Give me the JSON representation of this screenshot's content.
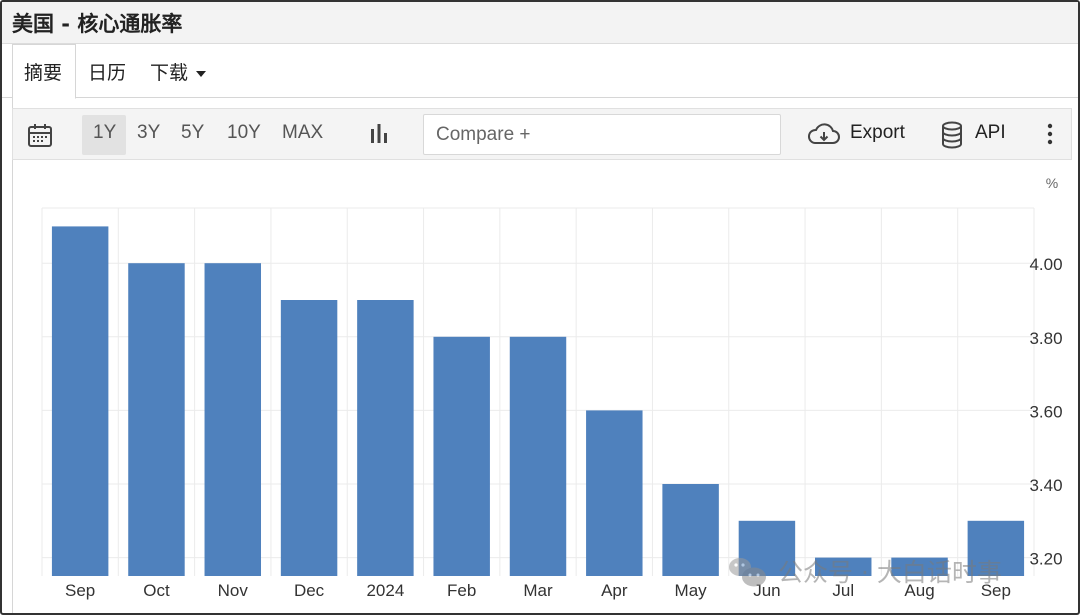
{
  "header": {
    "title": "美国 - 核心通胀率"
  },
  "tabs": [
    {
      "label": "摘要",
      "active": true
    },
    {
      "label": "日历",
      "active": false
    },
    {
      "label": "下载",
      "active": false
    }
  ],
  "toolbar": {
    "calendar_icon": "calendar-icon",
    "ranges": [
      "1Y",
      "3Y",
      "5Y",
      "10Y",
      "MAX"
    ],
    "selected_range": "1Y",
    "chart_type_icon": "bar-chart-icon",
    "compare_placeholder": "Compare +",
    "export_label": "Export",
    "export_icon": "cloud-download-icon",
    "api_label": "API",
    "api_icon": "database-icon",
    "more_icon": "more-vertical-icon"
  },
  "colors": {
    "bar": "#4f81bd",
    "grid": "#ebebeb",
    "axis_text": "#333333"
  },
  "watermark": "公众号 · 大白话时事",
  "chart_data": {
    "type": "bar",
    "categories": [
      "Sep",
      "Oct",
      "Nov",
      "Dec",
      "2024",
      "Feb",
      "Mar",
      "Apr",
      "May",
      "Jun",
      "Jul",
      "Aug",
      "Sep"
    ],
    "values": [
      4.1,
      4.0,
      4.0,
      3.9,
      3.9,
      3.8,
      3.8,
      3.6,
      3.4,
      3.3,
      3.2,
      3.2,
      3.3
    ],
    "unit": "%",
    "ylim": [
      3.15,
      4.15
    ],
    "yticks": [
      3.2,
      3.4,
      3.6,
      3.8,
      4.0
    ],
    "ytick_labels": [
      "3.20",
      "3.40",
      "3.60",
      "3.80",
      "4.00"
    ],
    "grid": true,
    "y_axis_position": "right"
  }
}
